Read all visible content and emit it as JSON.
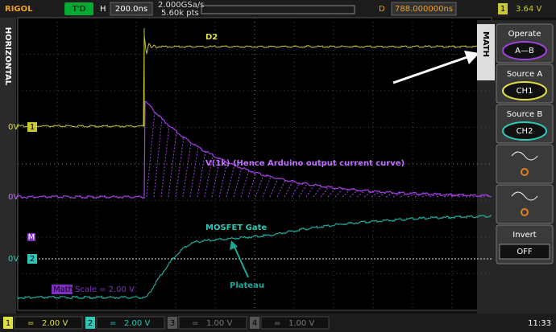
{
  "header": {
    "brand": "RIGOL",
    "trigger_status": "T'D",
    "timebase_label": "H",
    "timebase": "200.0ns",
    "sample_rate": "2.000GSa/s",
    "memory_depth": "5.60k pts",
    "delay_label": "D",
    "delay": "788.000000ns",
    "trigger_channel": "1",
    "trigger_level": "3.64 V"
  },
  "left_tab": "HORIZONTAL",
  "screen": {
    "d2_label": "D2",
    "current_label": "V(1k) (Hence Arduino output current curve)",
    "gate_label": "MOSFET Gate",
    "plateau_label": "Plateau",
    "ch1_level": "0V",
    "ch1_num": "1",
    "math_level": "0V",
    "ch2_level": "0V",
    "ch2_num": "2",
    "math_marker": "M",
    "math_tag": "Math",
    "math_scale": "Scale = 2.00 V"
  },
  "menu": {
    "title": "MATH",
    "items": [
      {
        "label": "Operate",
        "value": "A—B"
      },
      {
        "label": "Source A",
        "value": "CH1"
      },
      {
        "label": "Source B",
        "value": "CH2"
      },
      {
        "label": "Invert",
        "value": "OFF"
      }
    ]
  },
  "footer": {
    "channels": [
      {
        "num": "1",
        "coupling": "=",
        "scale": "2.00 V"
      },
      {
        "num": "2",
        "coupling": "=",
        "scale": "2.00 V"
      },
      {
        "num": "3",
        "coupling": "=",
        "scale": "1.00 V"
      },
      {
        "num": "4",
        "coupling": "=",
        "scale": "1.00 V"
      }
    ],
    "time": "11:33"
  }
}
